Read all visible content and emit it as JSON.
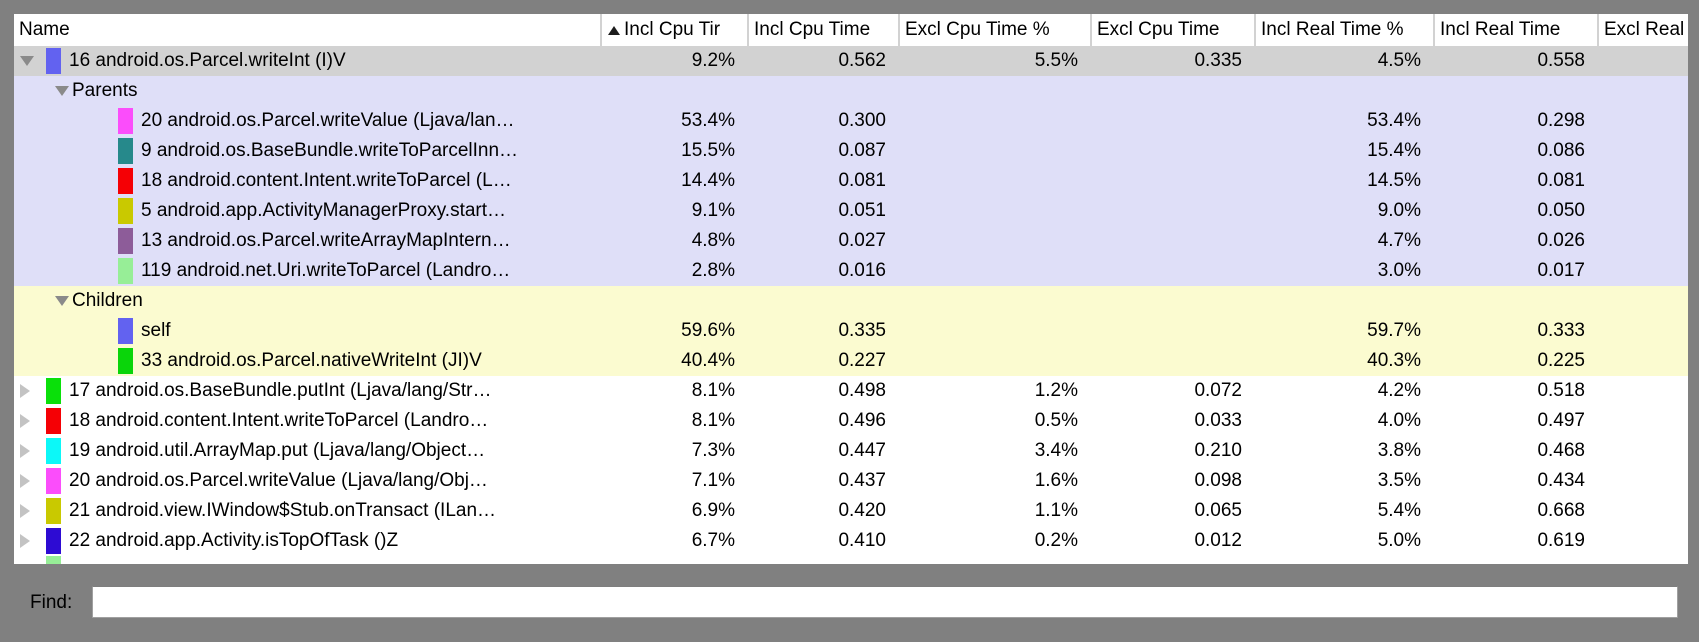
{
  "window": {
    "chrome_color": "#808080"
  },
  "find": {
    "label": "Find:",
    "value": ""
  },
  "table": {
    "colors": {
      "selected_row_bg": "#d2d2d2",
      "parents_section_bg": "#dfdff8",
      "children_section_bg": "#fbfbd0"
    },
    "columns": [
      {
        "label": "Name",
        "sort": false
      },
      {
        "label": "Incl Cpu Tir",
        "sort": true
      },
      {
        "label": "Incl Cpu Time",
        "sort": false
      },
      {
        "label": "Excl Cpu Time %",
        "sort": false
      },
      {
        "label": "Excl Cpu Time",
        "sort": false
      },
      {
        "label": "Incl Real Time %",
        "sort": false
      },
      {
        "label": "Incl Real Time",
        "sort": false
      },
      {
        "label": "Excl Real",
        "sort": false
      }
    ],
    "rows": [
      {
        "kind": "top",
        "expanded": true,
        "selected": true,
        "chip": "#6262f0",
        "name": "16 android.os.Parcel.writeInt (I)V",
        "values": [
          "9.2%",
          "0.562",
          "5.5%",
          "0.335",
          "4.5%",
          "0.558",
          ""
        ]
      },
      {
        "kind": "section",
        "section": "parents",
        "name": "Parents",
        "values": [
          "",
          "",
          "",
          "",
          "",
          "",
          ""
        ]
      },
      {
        "kind": "entry",
        "section": "parents",
        "chip": "#fb4dfb",
        "name": "20 android.os.Parcel.writeValue (Ljava/lan…",
        "values": [
          "53.4%",
          "0.300",
          "",
          "",
          "53.4%",
          "0.298",
          ""
        ]
      },
      {
        "kind": "entry",
        "section": "parents",
        "chip": "#26898b",
        "name": "9 android.os.BaseBundle.writeToParcelInn…",
        "values": [
          "15.5%",
          "0.087",
          "",
          "",
          "15.4%",
          "0.086",
          ""
        ]
      },
      {
        "kind": "entry",
        "section": "parents",
        "chip": "#f50005",
        "name": "18 android.content.Intent.writeToParcel (L…",
        "values": [
          "14.4%",
          "0.081",
          "",
          "",
          "14.5%",
          "0.081",
          ""
        ]
      },
      {
        "kind": "entry",
        "section": "parents",
        "chip": "#c9c900",
        "name": "5 android.app.ActivityManagerProxy.start…",
        "values": [
          "9.1%",
          "0.051",
          "",
          "",
          "9.0%",
          "0.050",
          ""
        ]
      },
      {
        "kind": "entry",
        "section": "parents",
        "chip": "#8d5c99",
        "name": "13 android.os.Parcel.writeArrayMapIntern…",
        "values": [
          "4.8%",
          "0.027",
          "",
          "",
          "4.7%",
          "0.026",
          ""
        ]
      },
      {
        "kind": "entry",
        "section": "parents",
        "chip": "#97ee97",
        "name": "119 android.net.Uri.writeToParcel (Landro…",
        "values": [
          "2.8%",
          "0.016",
          "",
          "",
          "3.0%",
          "0.017",
          ""
        ]
      },
      {
        "kind": "section",
        "section": "children",
        "name": "Children",
        "values": [
          "",
          "",
          "",
          "",
          "",
          "",
          ""
        ]
      },
      {
        "kind": "entry",
        "section": "children",
        "chip": "#6262f0",
        "name": "self",
        "values": [
          "59.6%",
          "0.335",
          "",
          "",
          "59.7%",
          "0.333",
          ""
        ]
      },
      {
        "kind": "entry",
        "section": "children",
        "chip": "#0ad50a",
        "name": "33 android.os.Parcel.nativeWriteInt (JI)V",
        "values": [
          "40.4%",
          "0.227",
          "",
          "",
          "40.3%",
          "0.225",
          ""
        ]
      },
      {
        "kind": "top",
        "expanded": false,
        "chip": "#0ae00a",
        "name": "17 android.os.BaseBundle.putInt (Ljava/lang/Str…",
        "values": [
          "8.1%",
          "0.498",
          "1.2%",
          "0.072",
          "4.2%",
          "0.518",
          ""
        ]
      },
      {
        "kind": "top",
        "expanded": false,
        "chip": "#f50005",
        "name": "18 android.content.Intent.writeToParcel (Landro…",
        "values": [
          "8.1%",
          "0.496",
          "0.5%",
          "0.033",
          "4.0%",
          "0.497",
          ""
        ]
      },
      {
        "kind": "top",
        "expanded": false,
        "chip": "#0cf8f8",
        "name": "19 android.util.ArrayMap.put (Ljava/lang/Object…",
        "values": [
          "7.3%",
          "0.447",
          "3.4%",
          "0.210",
          "3.8%",
          "0.468",
          ""
        ]
      },
      {
        "kind": "top",
        "expanded": false,
        "chip": "#fb4dfb",
        "name": "20 android.os.Parcel.writeValue (Ljava/lang/Obj…",
        "values": [
          "7.1%",
          "0.437",
          "1.6%",
          "0.098",
          "3.5%",
          "0.434",
          ""
        ]
      },
      {
        "kind": "top",
        "expanded": false,
        "chip": "#c9c900",
        "name": "21 android.view.IWindow$Stub.onTransact (ILan…",
        "values": [
          "6.9%",
          "0.420",
          "1.1%",
          "0.065",
          "5.4%",
          "0.668",
          ""
        ]
      },
      {
        "kind": "top",
        "expanded": false,
        "chip": "#2d0bd3",
        "name": "22 android.app.Activity.isTopOfTask ()Z",
        "values": [
          "6.7%",
          "0.410",
          "0.2%",
          "0.012",
          "5.0%",
          "0.619",
          ""
        ]
      },
      {
        "kind": "partial",
        "chip": "#97ee97",
        "name": "",
        "values": [
          "",
          "",
          "",
          "",
          "",
          "",
          ""
        ]
      }
    ]
  }
}
